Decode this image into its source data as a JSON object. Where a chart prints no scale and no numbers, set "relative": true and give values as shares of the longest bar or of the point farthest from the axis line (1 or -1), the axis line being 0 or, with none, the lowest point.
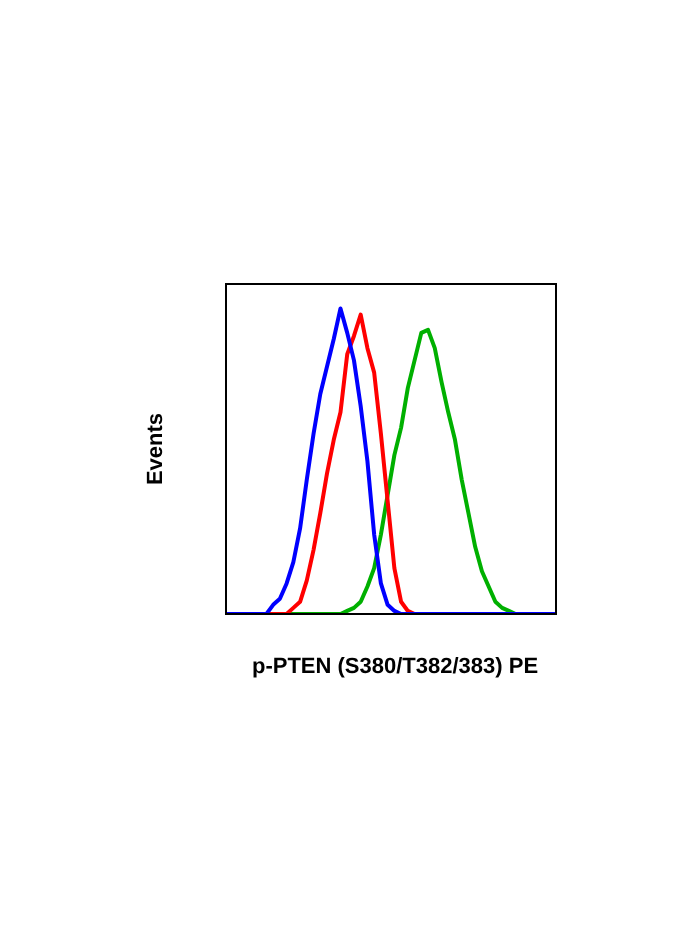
{
  "chart_data": {
    "type": "line",
    "xlabel": "p-PTEN (S380/T382/383) PE",
    "ylabel": "Events",
    "relative": true,
    "legend": false,
    "grid": false,
    "categories": [
      null,
      null,
      null,
      null,
      null,
      null,
      null,
      null,
      null,
      null,
      null,
      null,
      null,
      null,
      null,
      null,
      null,
      null,
      null,
      null,
      null,
      null,
      null,
      null,
      null,
      null,
      null,
      null,
      null,
      null,
      null,
      null,
      null,
      null,
      null,
      null,
      null,
      null,
      null,
      null,
      null,
      null,
      null,
      null,
      null,
      null,
      null,
      null,
      null,
      null
    ],
    "series": [
      {
        "color": "#0000ff",
        "values": [
          0,
          0,
          0,
          0,
          0,
          0,
          0,
          0.03,
          0.05,
          0.1,
          0.17,
          0.28,
          0.44,
          0.59,
          0.72,
          0.81,
          0.9,
          1,
          0.92,
          0.83,
          0.68,
          0.5,
          0.26,
          0.1,
          0.03,
          0.01,
          0,
          0,
          0,
          0,
          0,
          0,
          0,
          0,
          0,
          0,
          0,
          0,
          0,
          0,
          0,
          0,
          0,
          0,
          0,
          0,
          0,
          0,
          0,
          0
        ]
      },
      {
        "color": "#ff0000",
        "values": [
          null,
          null,
          null,
          null,
          null,
          null,
          0,
          0,
          0,
          0,
          0.02,
          0.04,
          0.11,
          0.21,
          0.33,
          0.46,
          0.57,
          0.66,
          0.85,
          0.91,
          0.98,
          0.87,
          0.79,
          0.59,
          0.37,
          0.15,
          0.04,
          0.01,
          0,
          0,
          null,
          null,
          null,
          null,
          null,
          null,
          null,
          null,
          null,
          null,
          null,
          null,
          null,
          null,
          null,
          null,
          null,
          null,
          null,
          null
        ]
      },
      {
        "color": "#00b000",
        "values": [
          null,
          null,
          null,
          null,
          null,
          null,
          null,
          null,
          0,
          0,
          0,
          0,
          0,
          0,
          0,
          0,
          0,
          0,
          0.01,
          0.02,
          0.04,
          0.09,
          0.15,
          0.26,
          0.39,
          0.52,
          0.61,
          0.74,
          0.83,
          0.92,
          0.93,
          0.87,
          0.76,
          0.66,
          0.57,
          0.44,
          0.33,
          0.22,
          0.14,
          0.09,
          0.04,
          0.02,
          0.01,
          0,
          0,
          0,
          null,
          null,
          null,
          null
        ]
      }
    ]
  }
}
